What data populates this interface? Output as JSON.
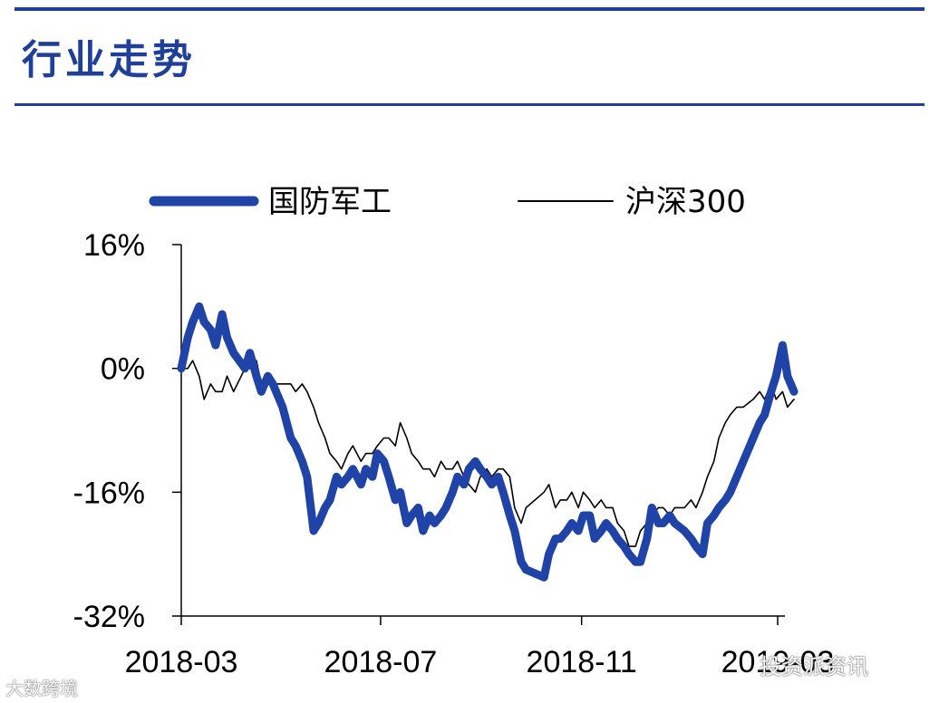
{
  "page": {
    "heading": "行业走势",
    "accent_color": "#1f3f9a"
  },
  "watermarks": {
    "bottom_left": "大数跨境",
    "bottom_right": "投资派资讯"
  },
  "chart_data": {
    "type": "line",
    "title": "",
    "xlabel": "",
    "ylabel": "",
    "xlim": [
      "2018-03",
      "2019-03"
    ],
    "ylim": [
      -32,
      16
    ],
    "y_unit": "%",
    "yticks": [
      16,
      0,
      -16,
      -32
    ],
    "ytick_labels": [
      "16%",
      "0%",
      "-16%",
      "-32%"
    ],
    "xticks": [
      "2018-03",
      "2018-07",
      "2018-11",
      "2019-03"
    ],
    "grid": false,
    "legend_position": "top",
    "series": [
      {
        "name": "国防军工",
        "color": "#1f43a6",
        "x": [
          "2018-03-01",
          "2018-03-05",
          "2018-03-08",
          "2018-03-12",
          "2018-03-15",
          "2018-03-19",
          "2018-03-22",
          "2018-03-26",
          "2018-03-29",
          "2018-04-02",
          "2018-04-09",
          "2018-04-12",
          "2018-04-16",
          "2018-04-19",
          "2018-04-23",
          "2018-04-26",
          "2018-05-02",
          "2018-05-07",
          "2018-05-10",
          "2018-05-14",
          "2018-05-17",
          "2018-05-21",
          "2018-05-24",
          "2018-05-28",
          "2018-05-31",
          "2018-06-04",
          "2018-06-07",
          "2018-06-11",
          "2018-06-14",
          "2018-06-19",
          "2018-06-22",
          "2018-06-26",
          "2018-06-29",
          "2018-07-03",
          "2018-07-06",
          "2018-07-10",
          "2018-07-13",
          "2018-07-17",
          "2018-07-20",
          "2018-07-24",
          "2018-07-27",
          "2018-07-31",
          "2018-08-03",
          "2018-08-07",
          "2018-08-10",
          "2018-08-14",
          "2018-08-17",
          "2018-08-21",
          "2018-08-24",
          "2018-08-28",
          "2018-08-31",
          "2018-09-04",
          "2018-09-07",
          "2018-09-11",
          "2018-09-14",
          "2018-09-18",
          "2018-09-21",
          "2018-09-25",
          "2018-09-28",
          "2018-10-09",
          "2018-10-12",
          "2018-10-16",
          "2018-10-19",
          "2018-10-23",
          "2018-10-26",
          "2018-10-30",
          "2018-11-02",
          "2018-11-06",
          "2018-11-09",
          "2018-11-13",
          "2018-11-16",
          "2018-11-20",
          "2018-11-23",
          "2018-11-27",
          "2018-11-30",
          "2018-12-04",
          "2018-12-07",
          "2018-12-11",
          "2018-12-14",
          "2018-12-18",
          "2018-12-21",
          "2018-12-25",
          "2018-12-28",
          "2019-01-03",
          "2019-01-07",
          "2019-01-10",
          "2019-01-14",
          "2019-01-17",
          "2019-01-21",
          "2019-01-24",
          "2019-01-28",
          "2019-01-31",
          "2019-02-04",
          "2019-02-08",
          "2019-02-14",
          "2019-02-18",
          "2019-02-21",
          "2019-02-25",
          "2019-02-28",
          "2019-03-04",
          "2019-03-07",
          "2019-03-11"
        ],
        "values": [
          0,
          4,
          6,
          8,
          6,
          5,
          3,
          7,
          4,
          2,
          0,
          2,
          -1,
          -3,
          -1,
          -2,
          -5,
          -9,
          -10,
          -12,
          -14,
          -21,
          -20,
          -18,
          -17,
          -14,
          -15,
          -14,
          -13,
          -15,
          -13,
          -14,
          -11,
          -12,
          -14,
          -17,
          -16,
          -20,
          -19,
          -18,
          -21,
          -19,
          -20,
          -19,
          -18,
          -16,
          -14,
          -15,
          -13,
          -12,
          -13,
          -14,
          -15,
          -14,
          -16,
          -19,
          -21,
          -25,
          -26,
          -27,
          -24,
          -22,
          -22,
          -21,
          -20,
          -21,
          -19,
          -19,
          -22,
          -21,
          -20,
          -21,
          -22,
          -23,
          -24,
          -25,
          -25,
          -22,
          -18,
          -20,
          -20,
          -19,
          -20,
          -21,
          -22,
          -23,
          -24,
          -20,
          -19,
          -18,
          -17,
          -16,
          -14,
          -12,
          -9,
          -7,
          -6,
          -3,
          -1,
          3,
          -1,
          -3
        ]
      },
      {
        "name": "沪深300",
        "color": "#000000",
        "x": [
          "2018-03-01",
          "2018-03-05",
          "2018-03-08",
          "2018-03-12",
          "2018-03-15",
          "2018-03-19",
          "2018-03-22",
          "2018-03-26",
          "2018-03-29",
          "2018-04-02",
          "2018-04-09",
          "2018-04-12",
          "2018-04-16",
          "2018-04-19",
          "2018-04-23",
          "2018-04-26",
          "2018-05-02",
          "2018-05-07",
          "2018-05-10",
          "2018-05-14",
          "2018-05-17",
          "2018-05-21",
          "2018-05-24",
          "2018-05-28",
          "2018-05-31",
          "2018-06-04",
          "2018-06-07",
          "2018-06-11",
          "2018-06-14",
          "2018-06-19",
          "2018-06-22",
          "2018-06-26",
          "2018-06-29",
          "2018-07-03",
          "2018-07-06",
          "2018-07-10",
          "2018-07-13",
          "2018-07-17",
          "2018-07-20",
          "2018-07-24",
          "2018-07-27",
          "2018-07-31",
          "2018-08-03",
          "2018-08-07",
          "2018-08-10",
          "2018-08-14",
          "2018-08-17",
          "2018-08-21",
          "2018-08-24",
          "2018-08-28",
          "2018-08-31",
          "2018-09-04",
          "2018-09-07",
          "2018-09-11",
          "2018-09-14",
          "2018-09-18",
          "2018-09-21",
          "2018-09-25",
          "2018-09-28",
          "2018-10-09",
          "2018-10-12",
          "2018-10-16",
          "2018-10-19",
          "2018-10-23",
          "2018-10-26",
          "2018-10-30",
          "2018-11-02",
          "2018-11-06",
          "2018-11-09",
          "2018-11-13",
          "2018-11-16",
          "2018-11-20",
          "2018-11-23",
          "2018-11-27",
          "2018-11-30",
          "2018-12-04",
          "2018-12-07",
          "2018-12-11",
          "2018-12-14",
          "2018-12-18",
          "2018-12-21",
          "2018-12-25",
          "2018-12-28",
          "2019-01-03",
          "2019-01-07",
          "2019-01-10",
          "2019-01-14",
          "2019-01-17",
          "2019-01-21",
          "2019-01-24",
          "2019-01-28",
          "2019-01-31",
          "2019-02-04",
          "2019-02-08",
          "2019-02-14",
          "2019-02-18",
          "2019-02-21",
          "2019-02-25",
          "2019-02-28",
          "2019-03-04",
          "2019-03-07",
          "2019-03-11"
        ],
        "values": [
          0,
          0,
          1,
          -1,
          -4,
          -2,
          -3,
          -3,
          -1,
          -3,
          0,
          0,
          1,
          -2,
          -1,
          -2,
          -2,
          -2,
          -3,
          -2,
          -3,
          -5,
          -7,
          -9,
          -11,
          -12,
          -13,
          -11,
          -10,
          -12,
          -11,
          -11,
          -10,
          -9,
          -9,
          -10,
          -7,
          -9,
          -11,
          -12,
          -13,
          -13,
          -14,
          -12,
          -13,
          -13,
          -12,
          -14,
          -15,
          -16,
          -14,
          -13,
          -14,
          -13,
          -13,
          -14,
          -18,
          -20,
          -18,
          -16,
          -15,
          -18,
          -17,
          -17,
          -16,
          -18,
          -16,
          -17,
          -18,
          -17,
          -18,
          -18,
          -20,
          -21,
          -23,
          -23,
          -21,
          -20,
          -19,
          -18,
          -18,
          -19,
          -18,
          -18,
          -17,
          -18,
          -16,
          -14,
          -12,
          -9,
          -7,
          -6,
          -5,
          -5,
          -4,
          -3,
          -4,
          -2,
          -4,
          -3,
          -5,
          -4
        ]
      }
    ]
  }
}
